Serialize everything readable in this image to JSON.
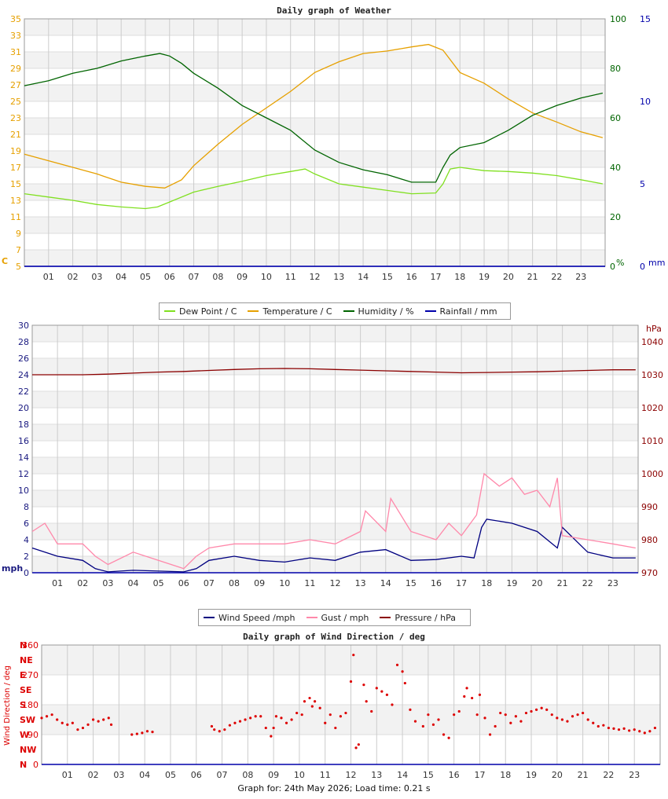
{
  "footer": "Graph for: 24th May 2026; Load time: 0.21 s",
  "hours": [
    "01",
    "02",
    "03",
    "04",
    "05",
    "06",
    "07",
    "08",
    "09",
    "10",
    "11",
    "12",
    "13",
    "14",
    "15",
    "16",
    "17",
    "18",
    "19",
    "20",
    "21",
    "22",
    "23"
  ],
  "chart_data": [
    {
      "type": "line",
      "title": "Daily graph of Weather",
      "x_unit": "hour",
      "xlim": [
        0,
        24
      ],
      "y_left": {
        "label": "C",
        "ticks": [
          5,
          7,
          9,
          11,
          13,
          15,
          17,
          19,
          21,
          23,
          25,
          27,
          29,
          31,
          33,
          35
        ],
        "ylim": [
          5,
          35
        ],
        "color": "#e6a000"
      },
      "y_right1": {
        "label": "%",
        "ticks": [
          0,
          20,
          40,
          60,
          80,
          100
        ],
        "ylim": [
          0,
          100
        ],
        "color": "#006400"
      },
      "y_right2": {
        "label": "mm",
        "ticks": [
          0,
          5,
          10,
          15
        ],
        "ylim": [
          0,
          15
        ],
        "color": "#0000aa"
      },
      "grid": true,
      "legend_position": "bottom",
      "series": [
        {
          "name": "Dew Point / C",
          "color": "#80e020",
          "axis": "left",
          "x": [
            0,
            1,
            2,
            3,
            4,
            5,
            5.5,
            6,
            7,
            8,
            9,
            10,
            11,
            11.6,
            12,
            13,
            14,
            15,
            16,
            17,
            17.3,
            17.6,
            18,
            19,
            20,
            21,
            22,
            23,
            23.9
          ],
          "y": [
            13.8,
            13.4,
            13.0,
            12.5,
            12.2,
            12.0,
            12.2,
            12.8,
            14.0,
            14.7,
            15.3,
            16.0,
            16.5,
            16.8,
            16.2,
            15.0,
            14.6,
            14.2,
            13.8,
            13.9,
            15.0,
            16.8,
            17.0,
            16.6,
            16.5,
            16.3,
            16.0,
            15.5,
            15.0
          ]
        },
        {
          "name": "Temperature / C",
          "color": "#e6a000",
          "axis": "left",
          "x": [
            0,
            1,
            2,
            3,
            4,
            5,
            5.8,
            6.5,
            7,
            8,
            9,
            10,
            11,
            12,
            13,
            14,
            15,
            16,
            16.7,
            17.3,
            18,
            19,
            20,
            21,
            22,
            23,
            23.9
          ],
          "y": [
            18.6,
            17.8,
            17.0,
            16.2,
            15.2,
            14.7,
            14.5,
            15.5,
            17.2,
            19.8,
            22.2,
            24.2,
            26.2,
            28.5,
            29.8,
            30.8,
            31.1,
            31.6,
            31.9,
            31.2,
            28.5,
            27.2,
            25.3,
            23.6,
            22.5,
            21.3,
            20.6
          ]
        },
        {
          "name": "Humidity / %",
          "color": "#006400",
          "axis": "right1",
          "x": [
            0,
            1,
            2,
            3,
            4,
            5,
            5.6,
            6,
            6.5,
            7,
            8,
            9,
            10,
            11,
            12,
            13,
            14,
            15,
            16,
            17,
            17.3,
            17.6,
            18,
            19,
            20,
            21,
            22,
            23,
            23.9
          ],
          "y": [
            73,
            75,
            78,
            80,
            83,
            85,
            86,
            85,
            82,
            78,
            72,
            65,
            60,
            55,
            47,
            42,
            39,
            37,
            34,
            34,
            40,
            45,
            48,
            50,
            55,
            61,
            65,
            68,
            70
          ]
        },
        {
          "name": "Rainfall / mm",
          "color": "#0000aa",
          "axis": "right2",
          "x": [
            0,
            24
          ],
          "y": [
            0,
            0
          ]
        }
      ]
    },
    {
      "type": "line",
      "title": "",
      "x_unit": "hour",
      "xlim": [
        0,
        24
      ],
      "y_left": {
        "label": "mph",
        "ticks": [
          0,
          2,
          4,
          6,
          8,
          10,
          12,
          14,
          16,
          18,
          20,
          22,
          24,
          26,
          28,
          30
        ],
        "ylim": [
          0,
          30
        ],
        "color": "#1a1a80"
      },
      "y_right": {
        "label": "hPa",
        "ticks": [
          970,
          980,
          990,
          1000,
          1010,
          1020,
          1030,
          1040
        ],
        "ylim": [
          970,
          1045
        ],
        "color": "#8b0000"
      },
      "grid": true,
      "legend_position": "bottom",
      "series": [
        {
          "name": "Wind Speed /mph",
          "color": "#000080",
          "axis": "left",
          "x": [
            0,
            1,
            2,
            2.5,
            3,
            4,
            5,
            6,
            6.5,
            7,
            8,
            9,
            10,
            11,
            12,
            13,
            14,
            15,
            16,
            17,
            17.5,
            17.8,
            18,
            19,
            20,
            20.8,
            21,
            22,
            23,
            23.9
          ],
          "y": [
            3.0,
            2.0,
            1.5,
            0.5,
            0.1,
            0.3,
            0.2,
            0.1,
            0.5,
            1.5,
            2.0,
            1.5,
            1.3,
            1.8,
            1.5,
            2.5,
            2.8,
            1.5,
            1.6,
            2.0,
            1.8,
            5.5,
            6.5,
            6.0,
            5.0,
            3.0,
            5.5,
            2.5,
            1.8,
            1.8
          ]
        },
        {
          "name": "Gust / mph",
          "color": "#ff88aa",
          "axis": "left",
          "x": [
            0,
            0.5,
            1,
            2,
            2.5,
            3,
            4,
            5,
            6,
            6.5,
            7,
            8,
            9,
            10,
            11,
            12,
            13,
            13.2,
            14,
            14.2,
            15,
            16,
            16.5,
            17,
            17.6,
            17.9,
            18.5,
            19,
            19.5,
            20,
            20.5,
            20.8,
            21,
            22,
            23,
            23.9
          ],
          "y": [
            5.0,
            6.0,
            3.5,
            3.5,
            2.0,
            1.0,
            2.5,
            1.5,
            0.5,
            2.0,
            3.0,
            3.5,
            3.5,
            3.5,
            4.0,
            3.5,
            5.0,
            7.5,
            5.0,
            9.0,
            5.0,
            4.0,
            6.0,
            4.5,
            7.0,
            12.0,
            10.5,
            11.5,
            9.5,
            10.0,
            8.0,
            11.5,
            4.5,
            4.0,
            3.5,
            3.0
          ]
        },
        {
          "name": "Pressure / hPa",
          "color": "#8b0000",
          "axis": "right",
          "x": [
            0,
            2,
            3,
            4,
            5,
            6,
            7,
            8,
            9,
            10,
            11,
            12,
            13,
            14,
            15,
            16,
            17,
            18,
            19,
            20,
            21,
            22,
            23,
            23.9
          ],
          "y": [
            1030.0,
            1030.0,
            1030.2,
            1030.5,
            1030.8,
            1031.0,
            1031.3,
            1031.6,
            1031.8,
            1031.9,
            1031.8,
            1031.6,
            1031.4,
            1031.2,
            1031.0,
            1030.8,
            1030.6,
            1030.7,
            1030.8,
            1030.9,
            1031.1,
            1031.3,
            1031.5,
            1031.5
          ]
        }
      ]
    },
    {
      "type": "scatter",
      "title": "Daily graph of Wind Direction / deg",
      "x_unit": "hour",
      "xlim": [
        0,
        24
      ],
      "y_left": {
        "label": "Wind Direction / deg",
        "ticks": [
          0,
          90,
          180,
          270,
          360
        ],
        "ylim": [
          0,
          360
        ],
        "color": "#dd0000"
      },
      "compass_labels": [
        "N",
        "NE",
        "E",
        "SE",
        "S",
        "SW",
        "W",
        "NW",
        "N"
      ],
      "grid": true,
      "series": [
        {
          "name": "Wind Direction",
          "color": "#dd0000",
          "x": [
            0.0,
            0.2,
            0.4,
            0.6,
            0.8,
            1.0,
            1.2,
            1.4,
            1.6,
            1.8,
            2.0,
            2.2,
            2.4,
            2.6,
            2.7,
            3.5,
            3.7,
            3.9,
            4.1,
            4.3,
            6.6,
            6.7,
            6.9,
            7.1,
            7.3,
            7.5,
            7.7,
            7.9,
            8.1,
            8.3,
            8.5,
            8.7,
            8.9,
            9.0,
            9.1,
            9.3,
            9.5,
            9.7,
            9.9,
            10.1,
            10.2,
            10.4,
            10.5,
            10.6,
            10.8,
            11.0,
            11.2,
            11.4,
            11.6,
            11.8,
            12.0,
            12.1,
            12.2,
            12.3,
            12.5,
            12.6,
            12.8,
            13.0,
            13.2,
            13.4,
            13.6,
            13.8,
            14.0,
            14.1,
            14.3,
            14.5,
            14.8,
            15.0,
            15.2,
            15.4,
            15.6,
            15.8,
            16.0,
            16.2,
            16.4,
            16.5,
            16.7,
            16.9,
            17.0,
            17.2,
            17.4,
            17.6,
            17.8,
            18.0,
            18.2,
            18.4,
            18.6,
            18.8,
            19.0,
            19.2,
            19.4,
            19.6,
            19.8,
            20.0,
            20.2,
            20.4,
            20.6,
            20.8,
            21.0,
            21.2,
            21.4,
            21.6,
            21.8,
            22.0,
            22.2,
            22.4,
            22.6,
            22.8,
            23.0,
            23.2,
            23.4,
            23.6,
            23.8
          ],
          "y": [
            140,
            145,
            150,
            135,
            125,
            120,
            125,
            105,
            110,
            120,
            135,
            130,
            135,
            140,
            120,
            90,
            92,
            95,
            100,
            98,
            115,
            105,
            100,
            105,
            118,
            125,
            130,
            135,
            140,
            145,
            145,
            110,
            85,
            110,
            145,
            140,
            125,
            135,
            155,
            150,
            190,
            200,
            175,
            190,
            170,
            125,
            150,
            110,
            145,
            155,
            250,
            330,
            50,
            60,
            240,
            190,
            160,
            230,
            220,
            210,
            180,
            300,
            280,
            245,
            165,
            130,
            115,
            150,
            120,
            135,
            90,
            80,
            150,
            160,
            205,
            230,
            200,
            150,
            210,
            140,
            90,
            115,
            155,
            150,
            125,
            145,
            130,
            155,
            160,
            165,
            170,
            165,
            150,
            140,
            135,
            130,
            145,
            150,
            155,
            135,
            125,
            115,
            118,
            110,
            108,
            105,
            108,
            102,
            105,
            100,
            95,
            100,
            110
          ]
        }
      ]
    }
  ],
  "legends": {
    "weather": [
      {
        "label": "Dew Point / C",
        "color": "#80e020"
      },
      {
        "label": "Temperature / C",
        "color": "#e6a000"
      },
      {
        "label": "Humidity / %",
        "color": "#006400"
      },
      {
        "label": "Rainfall / mm",
        "color": "#0000aa"
      }
    ],
    "wind": [
      {
        "label": "Wind Speed /mph",
        "color": "#000080"
      },
      {
        "label": "Gust / mph",
        "color": "#ff88aa"
      },
      {
        "label": "Pressure / hPa",
        "color": "#8b0000"
      }
    ]
  }
}
